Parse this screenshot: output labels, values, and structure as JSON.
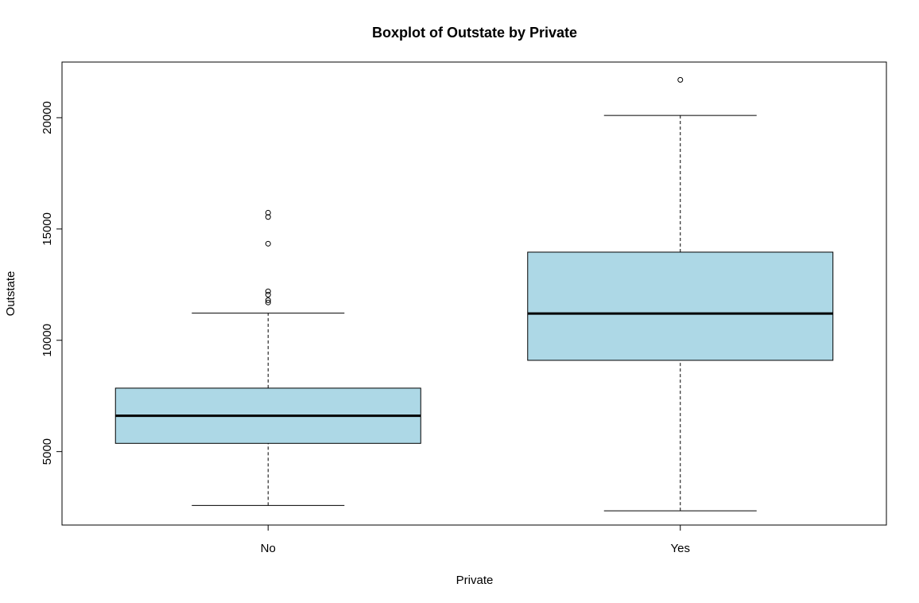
{
  "chart_data": {
    "type": "box",
    "title": "Boxplot of Outstate by Private",
    "xlabel": "Private",
    "ylabel": "Outstate",
    "categories": [
      "No",
      "Yes"
    ],
    "yticks": [
      5000,
      10000,
      15000,
      20000
    ],
    "ylim": [
      1700,
      22500
    ],
    "box_fill": "#add8e6",
    "boxes": [
      {
        "name": "No",
        "whisker_low": 2580,
        "q1": 5370,
        "median": 6610,
        "q3": 7850,
        "whisker_high": 11220,
        "outliers": [
          11700,
          11800,
          12050,
          12200,
          14340,
          15540,
          15730
        ]
      },
      {
        "name": "Yes",
        "whisker_low": 2340,
        "q1": 9100,
        "median": 11200,
        "q3": 13960,
        "whisker_high": 20100,
        "outliers": [
          21700
        ]
      }
    ]
  }
}
